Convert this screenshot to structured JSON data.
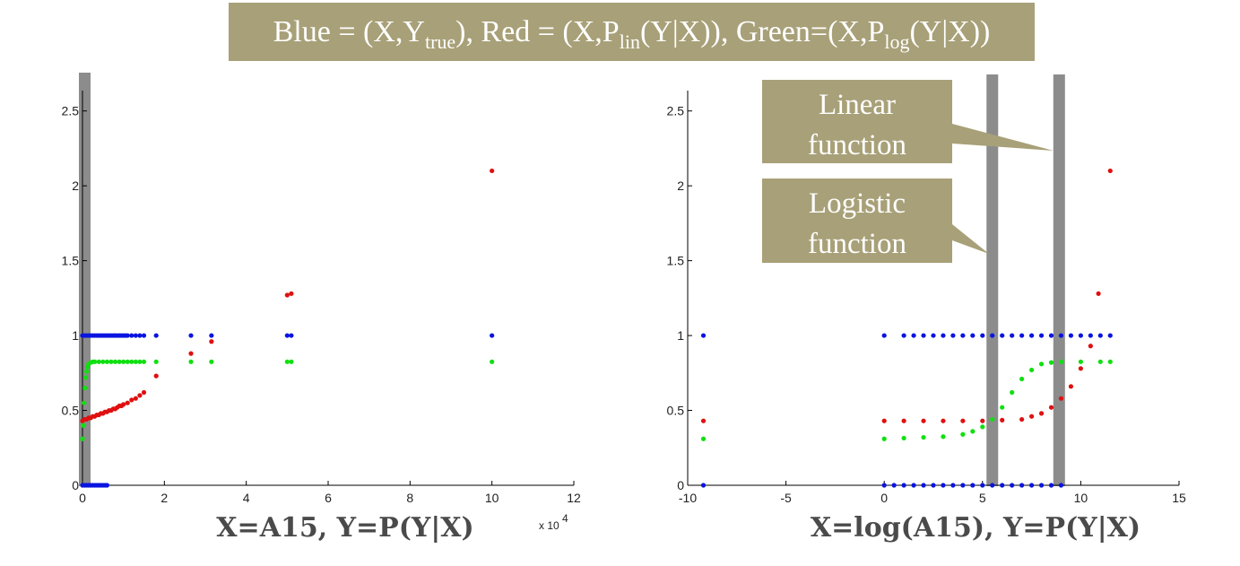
{
  "banner": {
    "p1": "Blue = (X,Y",
    "s1": "true",
    "p2": "), Red = (X,P",
    "s2": "lin",
    "p3": "(Y|X)), Green=(X,P",
    "s3": "log",
    "p4": "(Y|X))"
  },
  "colors": {
    "blue": "#0a14e0",
    "red": "#e01010",
    "green": "#10e010",
    "bar": "#8c8c8c",
    "callout": "#a8a078"
  },
  "callouts": [
    {
      "line1": "Linear",
      "line2": "function"
    },
    {
      "line1": "Logistic",
      "line2": "function"
    }
  ],
  "chart_data": [
    {
      "type": "scatter",
      "xlabel": "X=A15, Y=P(Y|X)",
      "x_multiplier": "x 10",
      "x_multiplier_exp": "4",
      "xlim": [
        0,
        12
      ],
      "ylim": [
        0,
        2.6
      ],
      "xticks": [
        "0",
        "2",
        "4",
        "6",
        "8",
        "10",
        "12"
      ],
      "yticks": [
        "0",
        "0.5",
        "1",
        "1.5",
        "2",
        "2.5"
      ],
      "highlight_x": [
        0.1
      ],
      "series": [
        {
          "color": "blue",
          "points": [
            [
              0,
              0
            ],
            [
              0.05,
              0
            ],
            [
              0.1,
              0
            ],
            [
              0.15,
              0
            ],
            [
              0.2,
              0
            ],
            [
              0.25,
              0
            ],
            [
              0.3,
              0
            ],
            [
              0.35,
              0
            ],
            [
              0.4,
              0
            ],
            [
              0.45,
              0
            ],
            [
              0.5,
              0
            ],
            [
              0.55,
              0
            ],
            [
              0.6,
              0
            ],
            [
              0,
              1
            ],
            [
              0.05,
              1
            ],
            [
              0.1,
              1
            ],
            [
              0.15,
              1
            ],
            [
              0.2,
              1
            ],
            [
              0.25,
              1
            ],
            [
              0.3,
              1
            ],
            [
              0.35,
              1
            ],
            [
              0.4,
              1
            ],
            [
              0.45,
              1
            ],
            [
              0.5,
              1
            ],
            [
              0.55,
              1
            ],
            [
              0.6,
              1
            ],
            [
              0.65,
              1
            ],
            [
              0.7,
              1
            ],
            [
              0.75,
              1
            ],
            [
              0.8,
              1
            ],
            [
              0.85,
              1
            ],
            [
              0.9,
              1
            ],
            [
              0.95,
              1
            ],
            [
              1.0,
              1
            ],
            [
              1.05,
              1
            ],
            [
              1.1,
              1
            ],
            [
              1.2,
              1
            ],
            [
              1.3,
              1
            ],
            [
              1.4,
              1
            ],
            [
              1.5,
              1
            ],
            [
              1.8,
              1
            ],
            [
              2.65,
              1
            ],
            [
              3.15,
              1
            ],
            [
              5.0,
              1
            ],
            [
              5.1,
              1
            ],
            [
              10.0,
              1
            ]
          ]
        },
        {
          "color": "red",
          "points": [
            [
              0,
              0.43
            ],
            [
              0.05,
              0.44
            ],
            [
              0.1,
              0.44
            ],
            [
              0.15,
              0.45
            ],
            [
              0.2,
              0.45
            ],
            [
              0.25,
              0.46
            ],
            [
              0.3,
              0.46
            ],
            [
              0.35,
              0.47
            ],
            [
              0.4,
              0.47
            ],
            [
              0.45,
              0.48
            ],
            [
              0.5,
              0.48
            ],
            [
              0.55,
              0.49
            ],
            [
              0.6,
              0.49
            ],
            [
              0.65,
              0.5
            ],
            [
              0.7,
              0.5
            ],
            [
              0.75,
              0.51
            ],
            [
              0.8,
              0.51
            ],
            [
              0.85,
              0.52
            ],
            [
              0.9,
              0.53
            ],
            [
              0.95,
              0.53
            ],
            [
              1.0,
              0.54
            ],
            [
              1.1,
              0.55
            ],
            [
              1.2,
              0.57
            ],
            [
              1.3,
              0.58
            ],
            [
              1.4,
              0.6
            ],
            [
              1.5,
              0.62
            ],
            [
              1.8,
              0.73
            ],
            [
              2.65,
              0.88
            ],
            [
              3.15,
              0.96
            ],
            [
              5.0,
              1.27
            ],
            [
              5.1,
              1.28
            ],
            [
              10.0,
              2.1
            ]
          ]
        },
        {
          "color": "green",
          "points": [
            [
              0,
              0.31
            ],
            [
              0.02,
              0.4
            ],
            [
              0.04,
              0.55
            ],
            [
              0.06,
              0.65
            ],
            [
              0.08,
              0.72
            ],
            [
              0.1,
              0.76
            ],
            [
              0.12,
              0.79
            ],
            [
              0.15,
              0.81
            ],
            [
              0.2,
              0.82
            ],
            [
              0.25,
              0.825
            ],
            [
              0.3,
              0.825
            ],
            [
              0.4,
              0.825
            ],
            [
              0.5,
              0.825
            ],
            [
              0.6,
              0.825
            ],
            [
              0.7,
              0.825
            ],
            [
              0.8,
              0.825
            ],
            [
              0.9,
              0.825
            ],
            [
              1.0,
              0.825
            ],
            [
              1.1,
              0.825
            ],
            [
              1.2,
              0.825
            ],
            [
              1.3,
              0.825
            ],
            [
              1.4,
              0.825
            ],
            [
              1.5,
              0.825
            ],
            [
              1.8,
              0.825
            ],
            [
              2.65,
              0.825
            ],
            [
              3.15,
              0.825
            ],
            [
              5.0,
              0.825
            ],
            [
              5.1,
              0.825
            ],
            [
              10.0,
              0.825
            ]
          ]
        }
      ]
    },
    {
      "type": "scatter",
      "xlabel": "X=log(A15), Y=P(Y|X)",
      "xlim": [
        -10,
        15
      ],
      "ylim": [
        0,
        2.6
      ],
      "xticks": [
        "-10",
        "-5",
        "0",
        "5",
        "10",
        "15"
      ],
      "yticks": [
        "0",
        "0.5",
        "1",
        "1.5",
        "2",
        "2.5"
      ],
      "highlight_x": [
        5.5,
        8.9
      ],
      "series": [
        {
          "color": "blue",
          "points": [
            [
              -9.2,
              0
            ],
            [
              -9.2,
              1
            ],
            [
              0,
              0
            ],
            [
              0,
              1
            ],
            [
              1,
              1
            ],
            [
              1.5,
              1
            ],
            [
              2,
              1
            ],
            [
              2.5,
              1
            ],
            [
              3,
              1
            ],
            [
              3.5,
              1
            ],
            [
              4,
              1
            ],
            [
              4.5,
              1
            ],
            [
              5,
              1
            ],
            [
              5.5,
              1
            ],
            [
              6,
              1
            ],
            [
              6.5,
              1
            ],
            [
              7,
              1
            ],
            [
              7.5,
              1
            ],
            [
              8,
              1
            ],
            [
              8.5,
              1
            ],
            [
              9,
              1
            ],
            [
              9.5,
              1
            ],
            [
              10,
              1
            ],
            [
              10.5,
              1
            ],
            [
              11,
              1
            ],
            [
              11.5,
              1
            ],
            [
              0.5,
              0
            ],
            [
              1,
              0
            ],
            [
              1.5,
              0
            ],
            [
              2,
              0
            ],
            [
              2.5,
              0
            ],
            [
              3,
              0
            ],
            [
              3.5,
              0
            ],
            [
              4,
              0
            ],
            [
              4.5,
              0
            ],
            [
              5,
              0
            ],
            [
              5.5,
              0
            ],
            [
              6,
              0
            ],
            [
              6.5,
              0
            ],
            [
              7,
              0
            ],
            [
              7.5,
              0
            ],
            [
              8,
              0
            ],
            [
              8.5,
              0
            ],
            [
              9,
              0
            ]
          ]
        },
        {
          "color": "red",
          "points": [
            [
              -9.2,
              0.43
            ],
            [
              0,
              0.43
            ],
            [
              1,
              0.43
            ],
            [
              2,
              0.43
            ],
            [
              3,
              0.43
            ],
            [
              4,
              0.43
            ],
            [
              5,
              0.43
            ],
            [
              6,
              0.435
            ],
            [
              7,
              0.44
            ],
            [
              7.5,
              0.46
            ],
            [
              8,
              0.48
            ],
            [
              8.5,
              0.52
            ],
            [
              9,
              0.58
            ],
            [
              9.5,
              0.66
            ],
            [
              10,
              0.78
            ],
            [
              10.5,
              0.93
            ],
            [
              10.9,
              1.28
            ],
            [
              11.5,
              2.1
            ]
          ]
        },
        {
          "color": "green",
          "points": [
            [
              -9.2,
              0.31
            ],
            [
              0,
              0.31
            ],
            [
              1,
              0.315
            ],
            [
              2,
              0.32
            ],
            [
              3,
              0.325
            ],
            [
              4,
              0.34
            ],
            [
              4.5,
              0.36
            ],
            [
              5,
              0.39
            ],
            [
              5.5,
              0.44
            ],
            [
              6,
              0.52
            ],
            [
              6.5,
              0.62
            ],
            [
              7,
              0.71
            ],
            [
              7.5,
              0.77
            ],
            [
              8,
              0.81
            ],
            [
              8.5,
              0.82
            ],
            [
              9,
              0.825
            ],
            [
              10,
              0.825
            ],
            [
              11,
              0.825
            ],
            [
              11.5,
              0.825
            ]
          ]
        }
      ]
    }
  ]
}
